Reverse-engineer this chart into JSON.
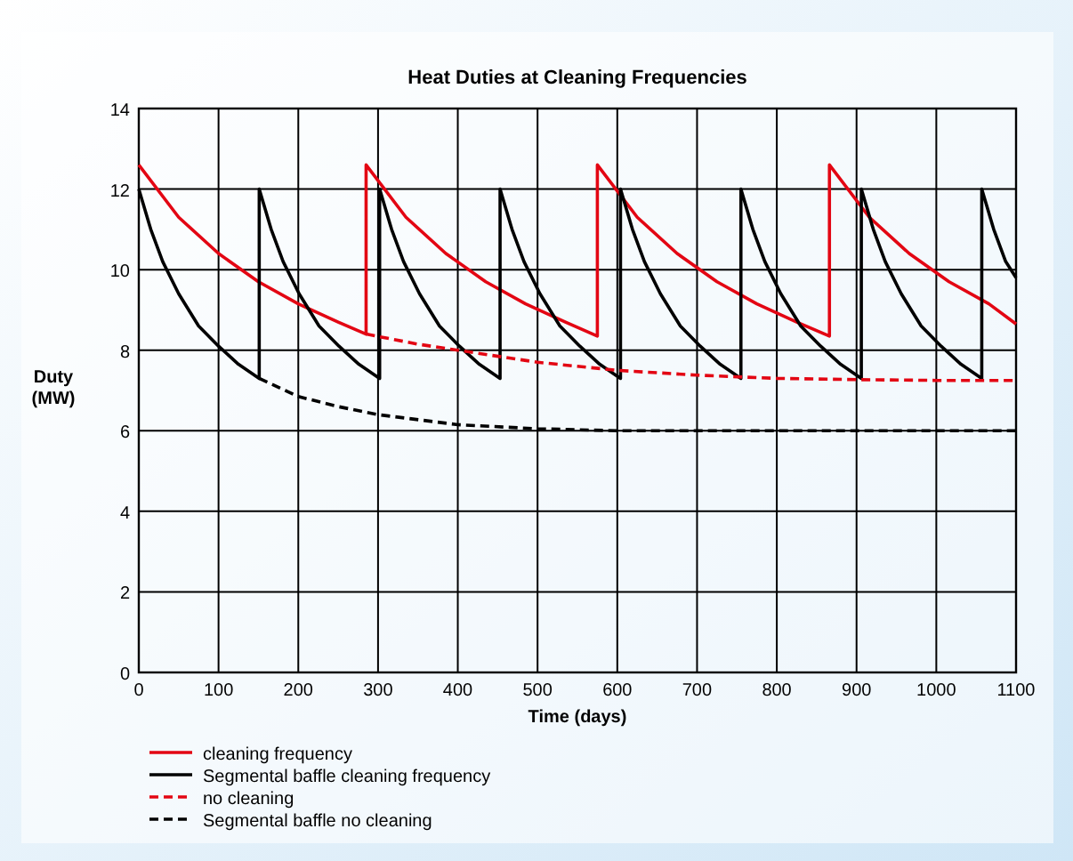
{
  "chart_data": {
    "type": "line",
    "title": "Heat Duties at Cleaning Frequencies",
    "xlabel": "Time (days)",
    "ylabel": "Duty\n(MW)",
    "xlim": [
      0,
      1100
    ],
    "xticks": [
      0,
      100,
      200,
      300,
      400,
      500,
      600,
      700,
      800,
      900,
      1000,
      1100
    ],
    "ylim": [
      0,
      14
    ],
    "yticks": [
      0,
      2,
      4,
      6,
      8,
      10,
      12,
      14
    ],
    "grid": true,
    "legend": "bottom",
    "marker": "none",
    "series": [
      {
        "name": "cleaning frequency",
        "color": "#e30613",
        "line_style": "solid",
        "x": [
          0,
          50,
          100,
          150,
          200,
          250,
          285,
          285,
          335,
          385,
          435,
          485,
          535,
          575,
          575,
          625,
          675,
          725,
          775,
          825,
          866,
          866,
          916,
          966,
          1016,
          1066,
          1100
        ],
        "values": [
          12.6,
          11.3,
          10.4,
          9.7,
          9.15,
          8.7,
          8.4,
          12.6,
          11.3,
          10.4,
          9.7,
          9.15,
          8.7,
          8.35,
          12.6,
          11.3,
          10.4,
          9.7,
          9.15,
          8.7,
          8.35,
          12.6,
          11.3,
          10.4,
          9.7,
          9.15,
          8.65
        ]
      },
      {
        "name": "Segmental baffle cleaning frequency",
        "color": "#000000",
        "line_style": "solid",
        "x": [
          0,
          15,
          30,
          50,
          75,
          100,
          125,
          151,
          151,
          166,
          181,
          201,
          226,
          251,
          276,
          302,
          302,
          317,
          332,
          352,
          377,
          402,
          427,
          453,
          453,
          468,
          483,
          503,
          528,
          553,
          578,
          604,
          604,
          619,
          634,
          654,
          679,
          704,
          729,
          755,
          755,
          770,
          785,
          805,
          830,
          855,
          880,
          906,
          906,
          921,
          936,
          956,
          981,
          1006,
          1031,
          1057,
          1057,
          1072,
          1087,
          1100
        ],
        "values": [
          12,
          11,
          10.2,
          9.4,
          8.6,
          8.1,
          7.65,
          7.3,
          12,
          11,
          10.2,
          9.4,
          8.6,
          8.1,
          7.65,
          7.3,
          12,
          11,
          10.2,
          9.4,
          8.6,
          8.1,
          7.65,
          7.3,
          12,
          11,
          10.2,
          9.4,
          8.6,
          8.1,
          7.65,
          7.3,
          12,
          11,
          10.2,
          9.4,
          8.6,
          8.1,
          7.65,
          7.3,
          12,
          11,
          10.2,
          9.4,
          8.6,
          8.1,
          7.65,
          7.3,
          12,
          11,
          10.2,
          9.4,
          8.6,
          8.1,
          7.65,
          7.3,
          12,
          11,
          10.2,
          9.8
        ]
      },
      {
        "name": "no cleaning",
        "color": "#e30613",
        "line_style": "dashed",
        "x": [
          285,
          350,
          400,
          500,
          600,
          700,
          800,
          900,
          1000,
          1100
        ],
        "values": [
          8.4,
          8.15,
          8.0,
          7.7,
          7.5,
          7.38,
          7.3,
          7.27,
          7.25,
          7.25
        ]
      },
      {
        "name": "Segmental baffle no cleaning",
        "color": "#000000",
        "line_style": "dashed",
        "x": [
          151,
          200,
          250,
          300,
          400,
          500,
          600,
          800,
          1100
        ],
        "values": [
          7.3,
          6.85,
          6.6,
          6.4,
          6.15,
          6.05,
          6.0,
          6.0,
          6.0
        ]
      }
    ]
  }
}
